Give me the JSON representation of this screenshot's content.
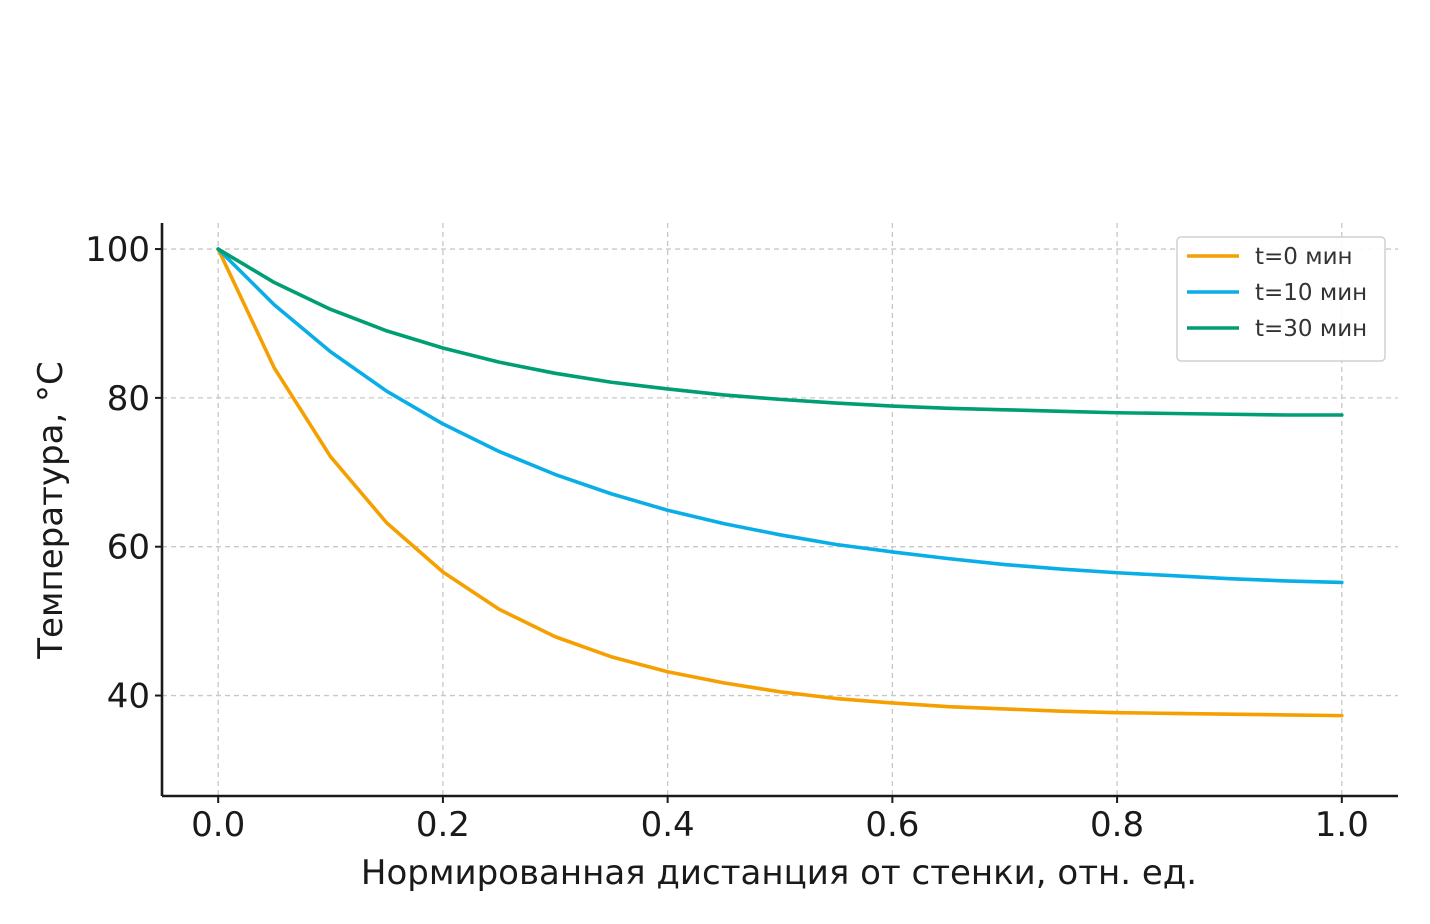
{
  "chart_data": {
    "type": "line",
    "title": "",
    "xlabel": "Нормированная дистанция от стенки, отн. ед.",
    "ylabel": "Температура, °C",
    "xlim": [
      -0.05,
      1.05
    ],
    "ylim": [
      26.5,
      103.5
    ],
    "xticks": [
      "0.0",
      "0.2",
      "0.4",
      "0.6",
      "0.8",
      "1.0"
    ],
    "yticks": [
      "40",
      "60",
      "80",
      "100"
    ],
    "grid": true,
    "legend_position": "top-right",
    "x": [
      0.0,
      0.05,
      0.1,
      0.15,
      0.2,
      0.25,
      0.3,
      0.35,
      0.4,
      0.45,
      0.5,
      0.55,
      0.6,
      0.65,
      0.7,
      0.75,
      0.8,
      0.85,
      0.9,
      0.95,
      1.0
    ],
    "series": [
      {
        "name": "t=0 мин",
        "color": "#f5a000",
        "values": [
          100.0,
          84.0,
          72.1,
          63.2,
          56.6,
          51.6,
          47.9,
          45.2,
          43.2,
          41.7,
          40.5,
          39.6,
          39.0,
          38.5,
          38.2,
          37.9,
          37.7,
          37.6,
          37.5,
          37.4,
          37.3
        ]
      },
      {
        "name": "t=10 мин",
        "color": "#0aaee6",
        "values": [
          100.0,
          92.5,
          86.2,
          80.9,
          76.5,
          72.8,
          69.7,
          67.1,
          64.9,
          63.1,
          61.6,
          60.3,
          59.3,
          58.4,
          57.6,
          57.0,
          56.5,
          56.1,
          55.7,
          55.4,
          55.2
        ]
      },
      {
        "name": "t=30 мин",
        "color": "#009e73",
        "values": [
          100.0,
          95.5,
          91.9,
          89.0,
          86.7,
          84.8,
          83.3,
          82.1,
          81.2,
          80.4,
          79.8,
          79.3,
          78.9,
          78.6,
          78.4,
          78.2,
          78.0,
          77.9,
          77.8,
          77.7,
          77.7
        ]
      }
    ]
  }
}
